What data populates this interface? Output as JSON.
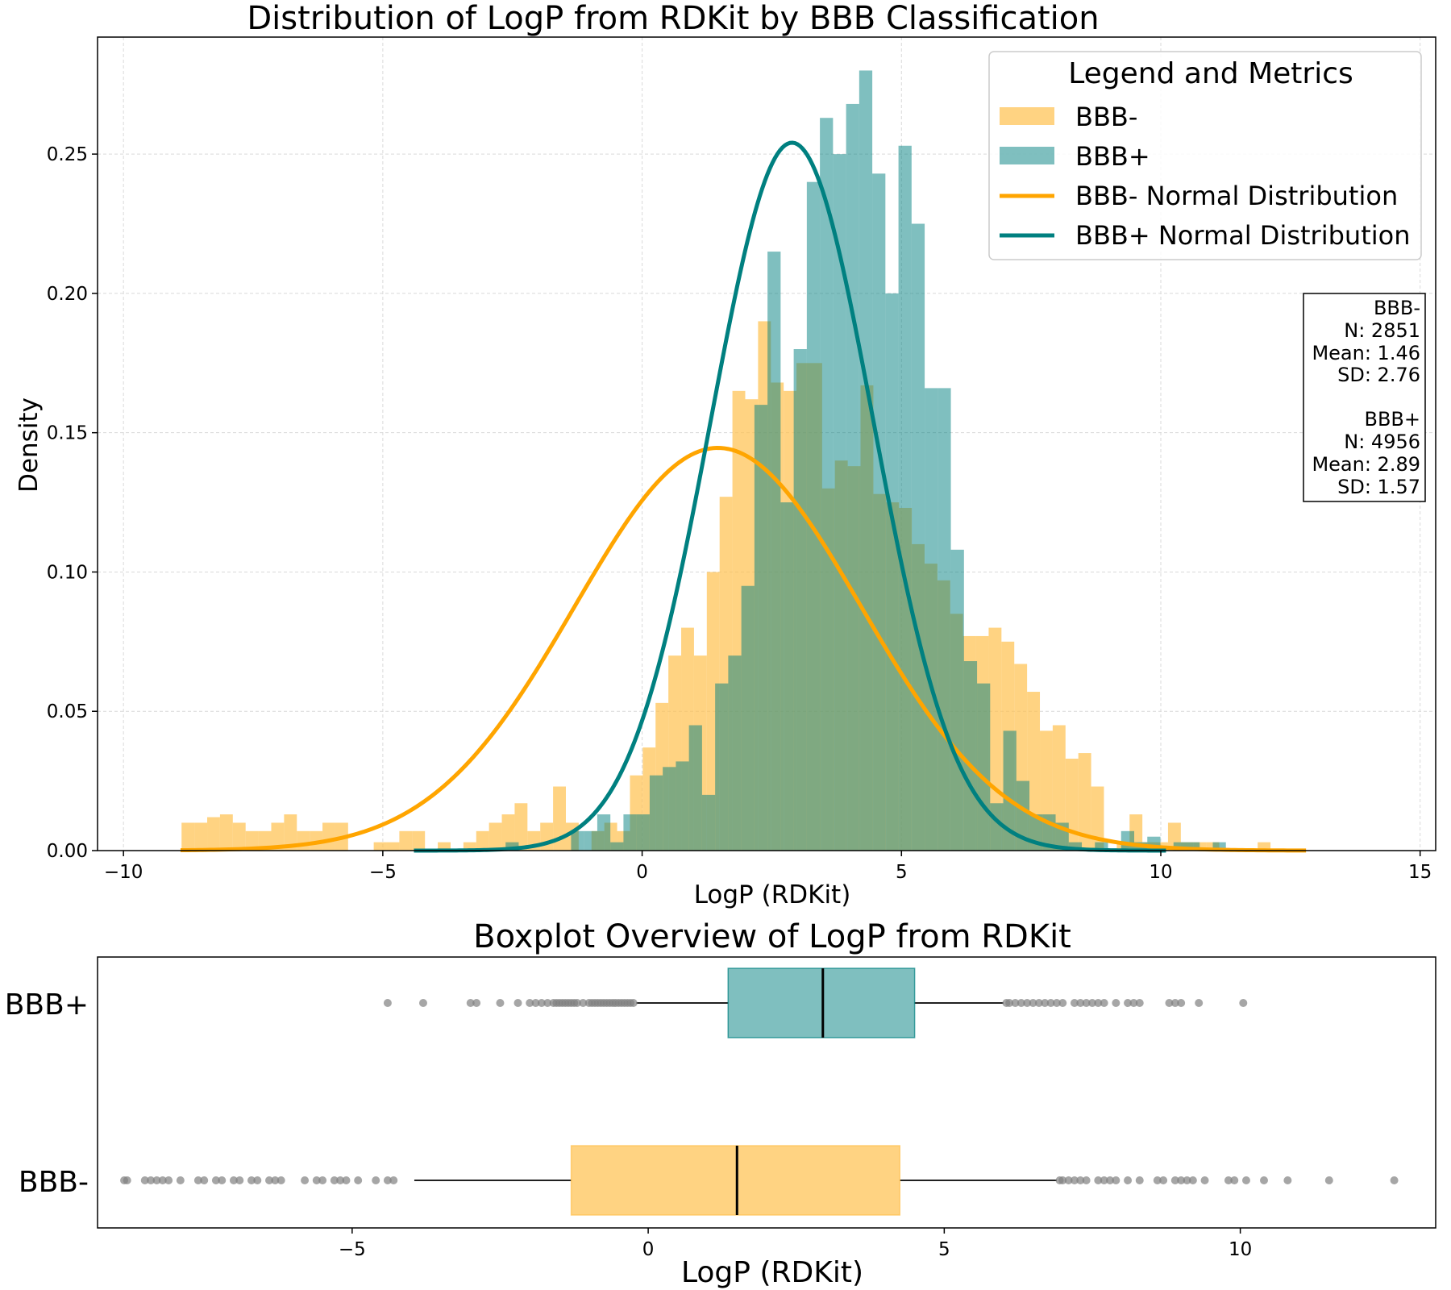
{
  "chart_data": [
    {
      "type": "histogram",
      "title": "Distribution of LogP from RDKit by BBB Classification",
      "xlabel": "LogP (RDKit)",
      "ylabel": "Density",
      "xlim": [
        -10.5,
        15.3
      ],
      "ylim": [
        0,
        0.292
      ],
      "xticks": [
        -10,
        -5,
        0,
        5,
        10,
        15
      ],
      "xtick_labels": [
        "−10",
        "−5",
        "0",
        "5",
        "10",
        "15"
      ],
      "yticks": [
        0.0,
        0.05,
        0.1,
        0.15,
        0.2,
        0.25
      ],
      "ytick_labels": [
        "0.00",
        "0.05",
        "0.10",
        "0.15",
        "0.20",
        "0.25"
      ],
      "grid": true,
      "legend_position": "upper right",
      "legend_title": "Legend and Metrics",
      "legend_labels": [
        "BBB-",
        "BBB+",
        "BBB- Normal Distribution",
        "BBB+ Normal Distribution"
      ],
      "metrics_lines": [
        "BBB-",
        "N: 2851",
        "Mean: 1.46",
        "SD: 2.76",
        "",
        "BBB+",
        "N: 4956",
        "Mean: 2.89",
        "SD: 1.57"
      ],
      "series": [
        {
          "name": "BBB-",
          "color": "#FFC04D",
          "opacity": 0.7,
          "bin_start": -8.88,
          "bin_width": 0.247,
          "values": [
            0.01,
            0.01,
            0.012,
            0.013,
            0.01,
            0.007,
            0.007,
            0.01,
            0.013,
            0.007,
            0.007,
            0.01,
            0.01,
            0.0,
            0.0,
            0.003,
            0.003,
            0.007,
            0.007,
            0.0,
            0.003,
            0.0,
            0.003,
            0.007,
            0.01,
            0.013,
            0.017,
            0.007,
            0.01,
            0.023,
            0.01,
            0.0,
            0.007,
            0.01,
            0.007,
            0.027,
            0.037,
            0.053,
            0.07,
            0.08,
            0.07,
            0.1,
            0.127,
            0.165,
            0.162,
            0.19,
            0.168,
            0.165,
            0.175,
            0.175,
            0.13,
            0.14,
            0.138,
            0.167,
            0.128,
            0.125,
            0.123,
            0.11,
            0.103,
            0.097,
            0.085,
            0.077,
            0.077,
            0.08,
            0.075,
            0.067,
            0.057,
            0.043,
            0.045,
            0.033,
            0.035,
            0.023,
            0.0,
            0.003,
            0.013,
            0.003,
            0.003,
            0.01,
            0.003,
            0.003,
            0.003,
            0.0,
            0.0,
            0.0,
            0.003,
            0.0,
            0.0,
            0.0,
            0.0
          ]
        },
        {
          "name": "BBB+",
          "color": "#008080",
          "opacity": 0.5,
          "bin_start": -4.4,
          "bin_width": 0.2525,
          "values": [
            0.0,
            0.0,
            0.0,
            0.0,
            0.0,
            0.0,
            0.0,
            0.003,
            0.0,
            0.0,
            0.0,
            0.0,
            0.007,
            0.007,
            0.013,
            0.003,
            0.013,
            0.013,
            0.027,
            0.03,
            0.032,
            0.045,
            0.02,
            0.06,
            0.07,
            0.095,
            0.16,
            0.215,
            0.125,
            0.18,
            0.24,
            0.263,
            0.25,
            0.268,
            0.28,
            0.243,
            0.2,
            0.253,
            0.225,
            0.166,
            0.166,
            0.108,
            0.068,
            0.06,
            0.017,
            0.043,
            0.025,
            0.013,
            0.013,
            0.01,
            0.003,
            0.0,
            0.003,
            0.0,
            0.007,
            0.003,
            0.005,
            0.0,
            0.003,
            0.003,
            0.0,
            0.003,
            0.0,
            0.0
          ]
        },
        {
          "name": "BBB- Normal Distribution",
          "type": "line",
          "color": "#FFA500",
          "mean": 1.46,
          "sd": 2.76,
          "x_range": [
            -8.9,
            12.8
          ]
        },
        {
          "name": "BBB+ Normal Distribution",
          "type": "line",
          "color": "#008080",
          "mean": 2.89,
          "sd": 1.57,
          "x_range": [
            -4.4,
            10.1
          ]
        }
      ]
    },
    {
      "type": "boxplot",
      "title": "Boxplot Overview of LogP from RDKit",
      "xlabel": "LogP (RDKit)",
      "xlim": [
        -9.3,
        13.3
      ],
      "xticks": [
        -5,
        0,
        5,
        10
      ],
      "xtick_labels": [
        "−5",
        "0",
        "5",
        "10"
      ],
      "categories": [
        "BBB+",
        "BBB-"
      ],
      "boxes": [
        {
          "name": "BBB+",
          "color": "#008080",
          "q1": 1.35,
          "median": 2.95,
          "q3": 4.5,
          "whisker_low": -0.2,
          "whisker_high": 6.0,
          "outliers": [
            -4.4,
            -3.8,
            -3.0,
            -2.9,
            -2.5,
            -2.2,
            -2.0,
            -1.9,
            -1.8,
            -1.7,
            -1.6,
            -1.55,
            -1.5,
            -1.45,
            -1.4,
            -1.35,
            -1.3,
            -1.25,
            -1.2,
            -1.1,
            -1.0,
            -0.95,
            -0.9,
            -0.85,
            -0.8,
            -0.75,
            -0.7,
            -0.65,
            -0.6,
            -0.55,
            -0.5,
            -0.45,
            -0.4,
            -0.35,
            -0.3,
            -0.25,
            6.05,
            6.1,
            6.2,
            6.3,
            6.4,
            6.5,
            6.6,
            6.7,
            6.8,
            6.9,
            7.0,
            7.2,
            7.3,
            7.4,
            7.5,
            7.6,
            7.7,
            7.9,
            8.1,
            8.2,
            8.3,
            8.8,
            8.9,
            9.0,
            9.3,
            10.05
          ]
        },
        {
          "name": "BBB-",
          "color": "#FFC04D",
          "q1": -1.3,
          "median": 1.5,
          "q3": 4.25,
          "whisker_low": -3.95,
          "whisker_high": 6.9,
          "outliers": [
            -8.85,
            -8.8,
            -8.5,
            -8.4,
            -8.3,
            -8.2,
            -8.1,
            -7.9,
            -7.6,
            -7.5,
            -7.3,
            -7.2,
            -7.0,
            -6.9,
            -6.7,
            -6.6,
            -6.4,
            -6.3,
            -6.2,
            -5.8,
            -5.6,
            -5.5,
            -5.3,
            -5.2,
            -5.1,
            -4.9,
            -4.6,
            -4.4,
            -4.3,
            6.95,
            7.0,
            7.1,
            7.2,
            7.3,
            7.4,
            7.6,
            7.7,
            7.8,
            7.9,
            8.1,
            8.3,
            8.6,
            8.7,
            8.9,
            9.0,
            9.1,
            9.2,
            9.4,
            9.8,
            9.9,
            10.1,
            10.4,
            10.8,
            11.5,
            12.6
          ]
        }
      ]
    }
  ]
}
